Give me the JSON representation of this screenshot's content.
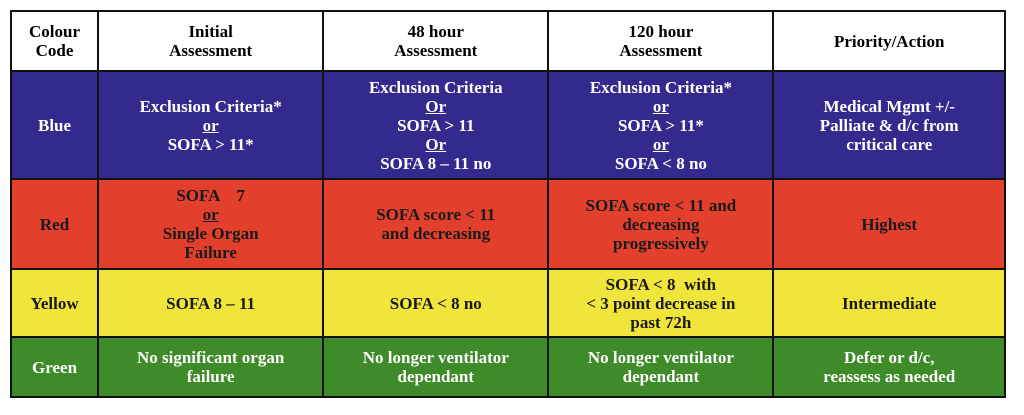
{
  "colors": {
    "blue": "#322a8c",
    "red": "#e2402c",
    "yellow": "#f0e53a",
    "green": "#3f8a29",
    "blue_text": "#ffffff",
    "red_text": "#1a1a1a",
    "yellow_text": "#1a1a1a",
    "green_text": "#ffffff"
  },
  "headers": {
    "colour_code": [
      "Colour",
      "Code"
    ],
    "initial": [
      "Initial",
      "Assessment"
    ],
    "h48": [
      "48 hour",
      "Assessment"
    ],
    "h120": [
      "120 hour",
      "Assessment"
    ],
    "priority": [
      "Priority/Action"
    ]
  },
  "rows": {
    "blue": {
      "code": "Blue",
      "initial": [
        "Exclusion Criteria*",
        "or",
        "SOFA > 11*"
      ],
      "h48": [
        "Exclusion Criteria",
        "Or",
        "SOFA > 11",
        "Or",
        "SOFA 8 – 11 no"
      ],
      "h120": [
        "Exclusion Criteria*",
        "or",
        "SOFA > 11*",
        "or",
        "SOFA  < 8  no"
      ],
      "priority": [
        "Medical Mgmt +/-",
        "Palliate & d/c from",
        "critical care"
      ]
    },
    "red": {
      "code": "Red",
      "initial": [
        "SOFA    7",
        "or",
        "Single Organ",
        "Failure"
      ],
      "h48": [
        "SOFA score < 11",
        "and decreasing"
      ],
      "h120": [
        "SOFA score < 11 and",
        "decreasing",
        "progressively"
      ],
      "priority": [
        "Highest"
      ]
    },
    "yellow": {
      "code": "Yellow",
      "initial": [
        "SOFA 8 – 11"
      ],
      "h48": [
        "SOFA < 8 no"
      ],
      "h120": [
        "SOFA < 8  with",
        "< 3 point decrease in",
        "past 72h"
      ],
      "priority": [
        "Intermediate"
      ]
    },
    "green": {
      "code": "Green",
      "initial": [
        "No significant organ",
        "failure"
      ],
      "h48": [
        "No longer ventilator",
        "dependant"
      ],
      "h120": [
        "No longer ventilator",
        "dependant"
      ],
      "priority": [
        "Defer or d/c,",
        "reassess as needed"
      ]
    }
  }
}
